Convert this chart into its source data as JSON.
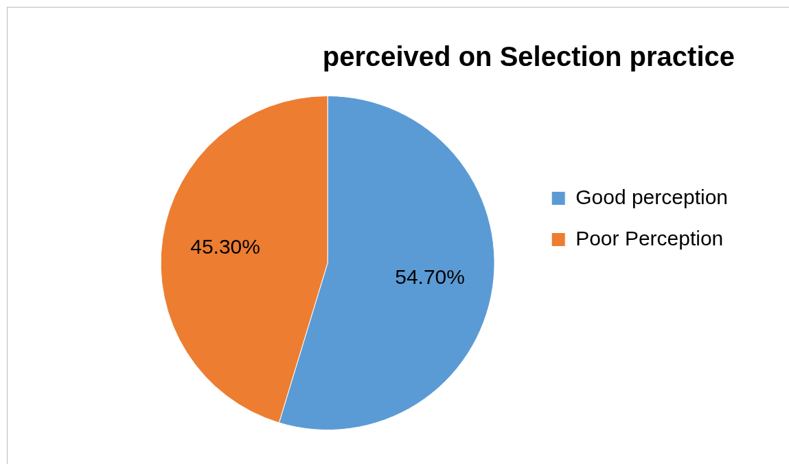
{
  "chart_data": {
    "type": "pie",
    "title": "perceived on Selection practice",
    "categories": [
      "Good perception",
      "Poor Perception"
    ],
    "values": [
      54.7,
      45.3
    ],
    "value_labels": [
      "54.70%",
      "45.30%"
    ],
    "colors": [
      "#5b9bd5",
      "#ed7d31"
    ],
    "legend": "right"
  }
}
